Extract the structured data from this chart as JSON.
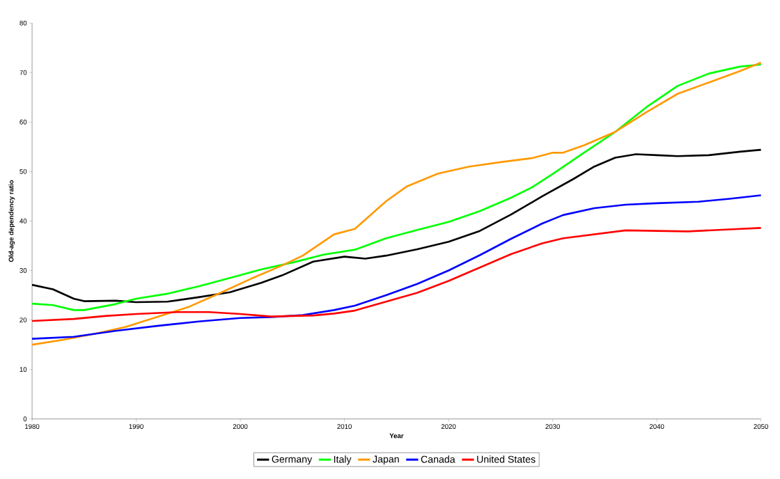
{
  "chart_data": {
    "type": "line",
    "xlabel": "Year",
    "ylabel": "Old-age dependency ratio",
    "xlim": [
      1980,
      2050
    ],
    "xticks": [
      1980,
      1990,
      2000,
      2010,
      2020,
      2030,
      2040,
      2050
    ],
    "ylim": [
      0,
      80
    ],
    "yticks": [
      0,
      10,
      20,
      30,
      40,
      50,
      60,
      70,
      80
    ],
    "grid": false,
    "legend": "bottom",
    "marker": "none",
    "line_style": "solid",
    "series": [
      {
        "name": "Germany",
        "color": "#000000",
        "x": [
          1980,
          1982,
          1984,
          1985,
          1988,
          1990,
          1993,
          1996,
          1999,
          2002,
          2004,
          2007,
          2010,
          2012,
          2014,
          2017,
          2020,
          2023,
          2026,
          2029,
          2032,
          2034,
          2036,
          2038,
          2040,
          2042,
          2045,
          2048,
          2050
        ],
        "values": [
          27.1,
          26.2,
          24.3,
          23.8,
          23.9,
          23.6,
          23.7,
          24.6,
          25.6,
          27.5,
          29.0,
          31.8,
          32.8,
          32.4,
          33.0,
          34.3,
          35.8,
          38.0,
          41.3,
          45.0,
          48.5,
          51.0,
          52.8,
          53.5,
          53.3,
          53.1,
          53.3,
          54.0,
          54.4
        ]
      },
      {
        "name": "Italy",
        "color": "#00ff00",
        "x": [
          1980,
          1982,
          1984,
          1985,
          1988,
          1990,
          1993,
          1996,
          1999,
          2002,
          2005,
          2008,
          2011,
          2014,
          2017,
          2020,
          2023,
          2026,
          2028,
          2030,
          2033,
          2036,
          2039,
          2042,
          2045,
          2048,
          2050
        ],
        "values": [
          23.3,
          23.0,
          22.0,
          22.0,
          23.2,
          24.3,
          25.3,
          26.8,
          28.5,
          30.2,
          31.6,
          33.2,
          34.2,
          36.5,
          38.2,
          39.8,
          42.0,
          44.7,
          46.8,
          49.5,
          53.8,
          58.0,
          63.0,
          67.3,
          69.8,
          71.2,
          71.6
        ]
      },
      {
        "name": "Japan",
        "color": "#ff9900",
        "x": [
          1980,
          1983,
          1986,
          1989,
          1992,
          1995,
          1998,
          2001,
          2004,
          2006,
          2009,
          2011,
          2014,
          2016,
          2019,
          2022,
          2025,
          2028,
          2030,
          2031,
          2033,
          2036,
          2039,
          2042,
          2045,
          2048,
          2050
        ],
        "values": [
          15.0,
          16.0,
          17.2,
          18.6,
          20.6,
          22.6,
          25.4,
          28.3,
          31.0,
          33.0,
          37.3,
          38.4,
          44.0,
          47.0,
          49.6,
          51.0,
          51.9,
          52.7,
          53.8,
          53.8,
          55.3,
          58.0,
          62.0,
          65.7,
          68.0,
          70.3,
          72.0
        ]
      },
      {
        "name": "Canada",
        "color": "#0000ff",
        "x": [
          1980,
          1984,
          1988,
          1992,
          1996,
          2000,
          2003,
          2006,
          2009,
          2011,
          2014,
          2017,
          2020,
          2023,
          2026,
          2029,
          2031,
          2034,
          2037,
          2040,
          2044,
          2047,
          2050
        ],
        "values": [
          16.2,
          16.6,
          17.8,
          18.8,
          19.7,
          20.4,
          20.6,
          21.0,
          22.0,
          22.9,
          25.0,
          27.3,
          30.0,
          33.1,
          36.4,
          39.5,
          41.2,
          42.6,
          43.3,
          43.6,
          43.9,
          44.5,
          45.2
        ]
      },
      {
        "name": "United States",
        "color": "#ff0000",
        "x": [
          1980,
          1984,
          1987,
          1990,
          1994,
          1997,
          2000,
          2003,
          2007,
          2009,
          2011,
          2014,
          2017,
          2020,
          2023,
          2026,
          2029,
          2031,
          2034,
          2037,
          2040,
          2043,
          2047,
          2050
        ],
        "values": [
          19.8,
          20.2,
          20.8,
          21.2,
          21.6,
          21.6,
          21.2,
          20.7,
          20.9,
          21.3,
          21.9,
          23.7,
          25.5,
          27.9,
          30.6,
          33.3,
          35.5,
          36.5,
          37.3,
          38.1,
          38.0,
          37.9,
          38.3,
          38.6
        ]
      }
    ]
  }
}
